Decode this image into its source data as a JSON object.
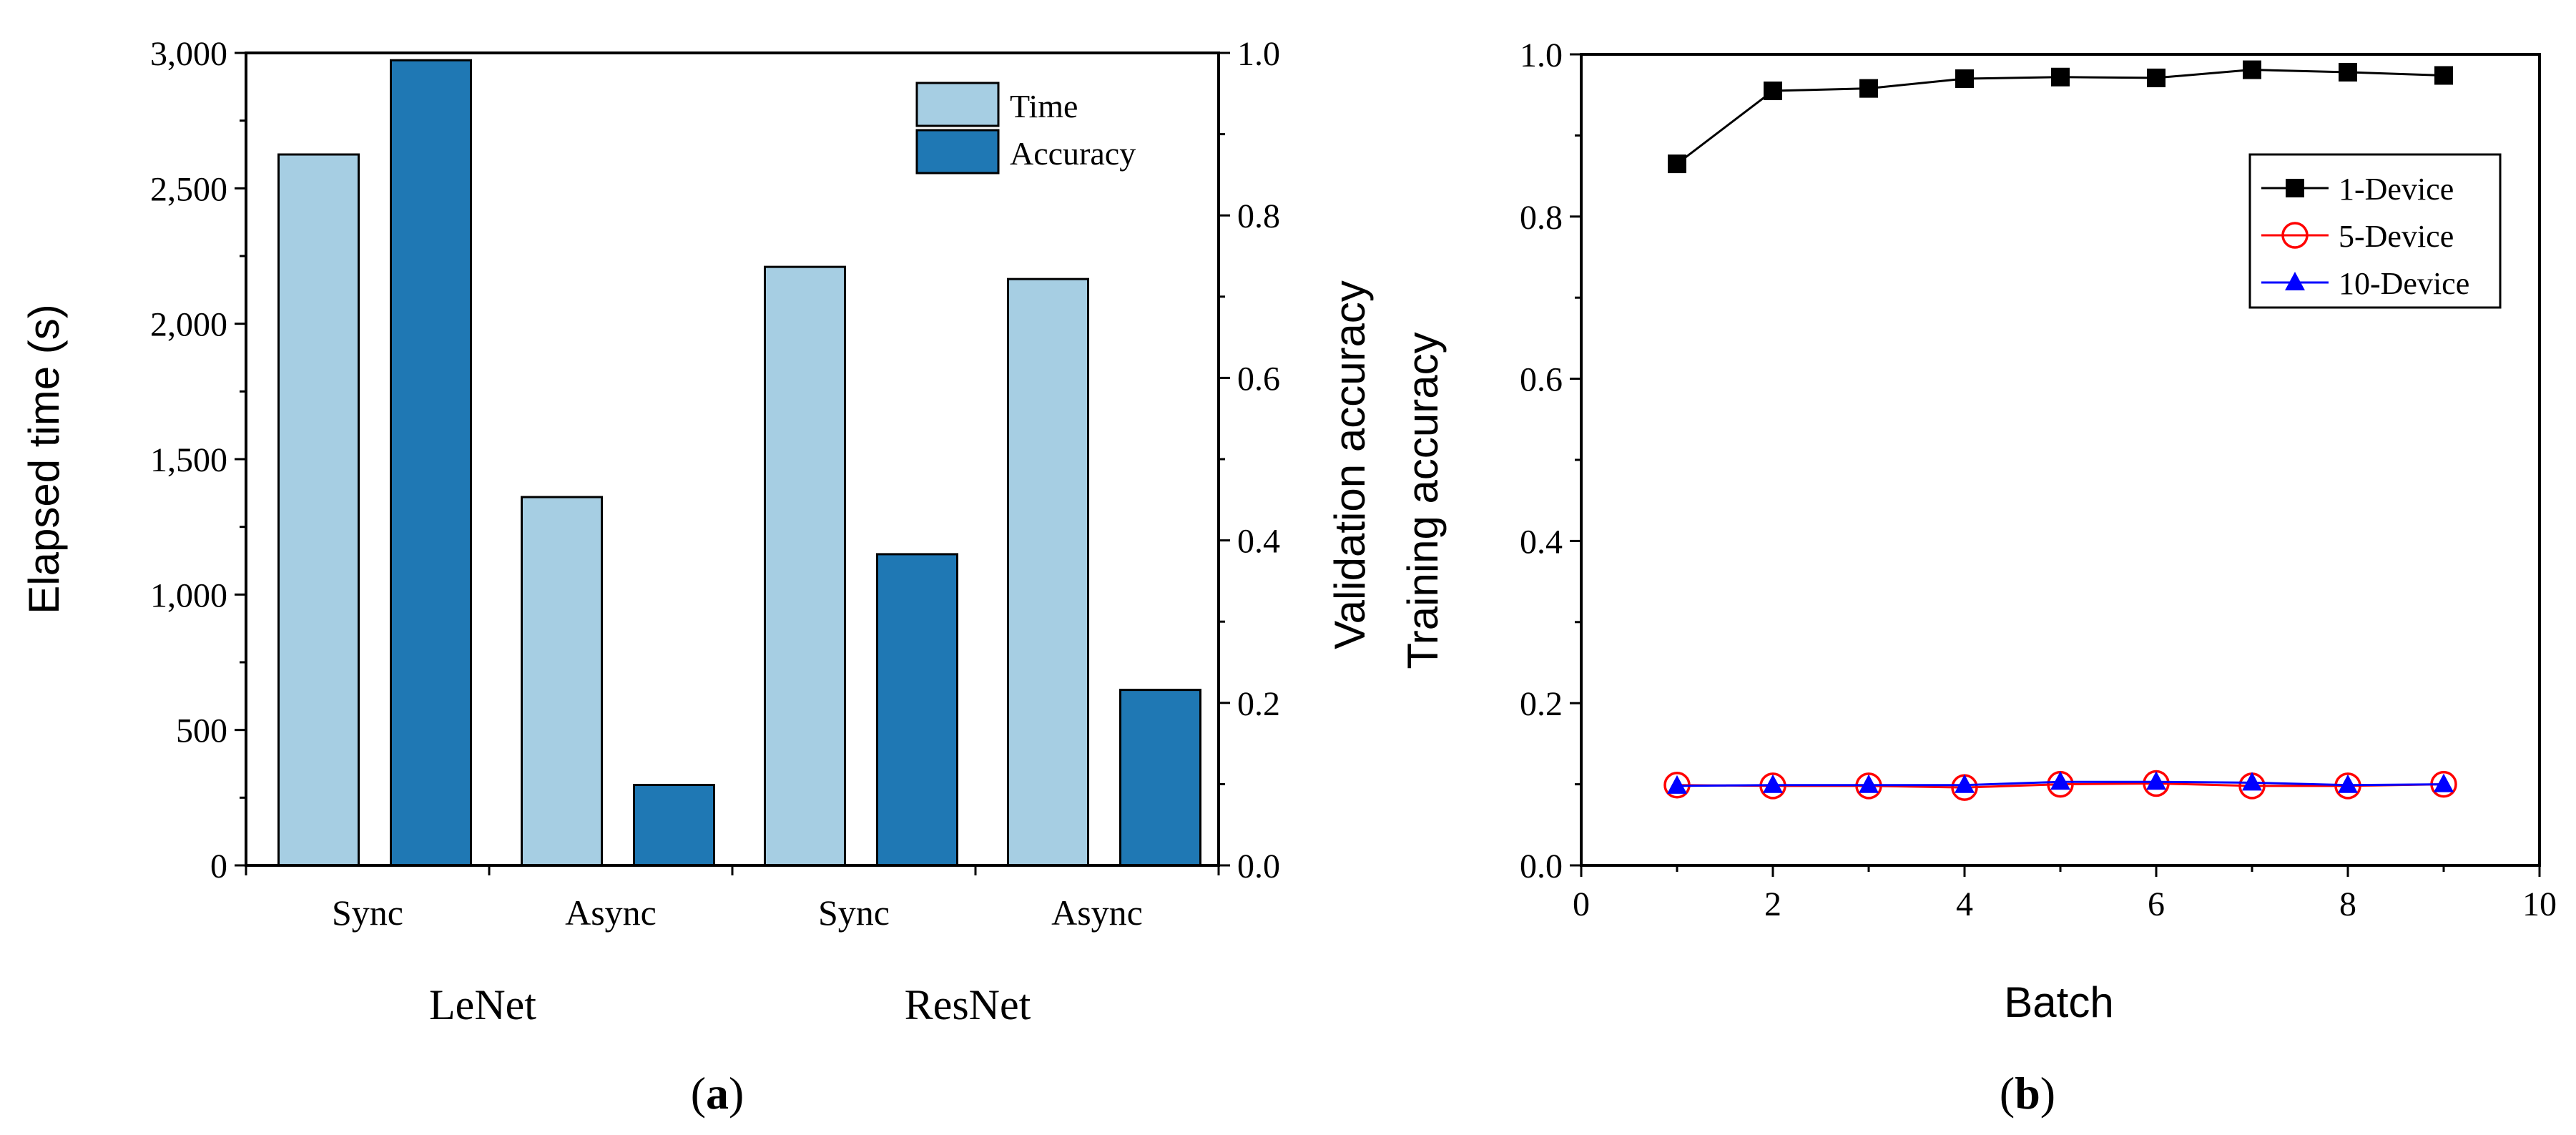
{
  "chart_data": [
    {
      "panel_label": "(a)",
      "type": "bar",
      "group_categories": [
        "Sync",
        "Async",
        "Sync",
        "Async"
      ],
      "groups": [
        {
          "label": "LeNet",
          "categories": [
            "Sync",
            "Async"
          ]
        },
        {
          "label": "ResNet",
          "categories": [
            "Sync",
            "Async"
          ]
        }
      ],
      "series": [
        {
          "name": "Time",
          "axis": "left",
          "color": "#a6cee3",
          "values": [
            2625,
            1360,
            2210,
            2165
          ]
        },
        {
          "name": "Accuracy",
          "axis": "right",
          "color": "#1f78b4",
          "values": [
            0.991,
            0.099,
            0.383,
            0.216
          ]
        }
      ],
      "ylabel": "Elapsed time (s)",
      "ylim": [
        0,
        3000
      ],
      "yticks": [
        "0",
        "500",
        "1,000",
        "1,500",
        "2,000",
        "2,500",
        "3,000"
      ],
      "y2label": "Validation accuracy",
      "y2lim": [
        0,
        1
      ],
      "y2ticks": [
        "0.0",
        "0.2",
        "0.4",
        "0.6",
        "0.8",
        "1.0"
      ],
      "legend_position": "top-right",
      "grid": false
    },
    {
      "panel_label": "(b)",
      "type": "line",
      "x": [
        1,
        2,
        3,
        4,
        5,
        6,
        7,
        8,
        9
      ],
      "series": [
        {
          "name": "1-Device",
          "color": "#000000",
          "marker": "square",
          "values": [
            0.865,
            0.955,
            0.958,
            0.97,
            0.972,
            0.971,
            0.981,
            0.978,
            0.974
          ]
        },
        {
          "name": "5-Device",
          "color": "#ff0000",
          "marker": "circle-open",
          "values": [
            0.099,
            0.098,
            0.098,
            0.096,
            0.1,
            0.101,
            0.098,
            0.098,
            0.1
          ]
        },
        {
          "name": "10-Device",
          "color": "#0000ff",
          "marker": "triangle",
          "values": [
            0.098,
            0.099,
            0.099,
            0.099,
            0.103,
            0.103,
            0.102,
            0.099,
            0.1
          ]
        }
      ],
      "xlabel": "Batch",
      "ylabel": "Training accuracy",
      "xlim": [
        0,
        10
      ],
      "ylim": [
        0,
        1
      ],
      "xticks": [
        "0",
        "2",
        "4",
        "6",
        "8",
        "10"
      ],
      "yticks": [
        "0.0",
        "0.2",
        "0.4",
        "0.6",
        "0.8",
        "1.0"
      ],
      "legend_position": "top-right",
      "grid": false
    }
  ]
}
